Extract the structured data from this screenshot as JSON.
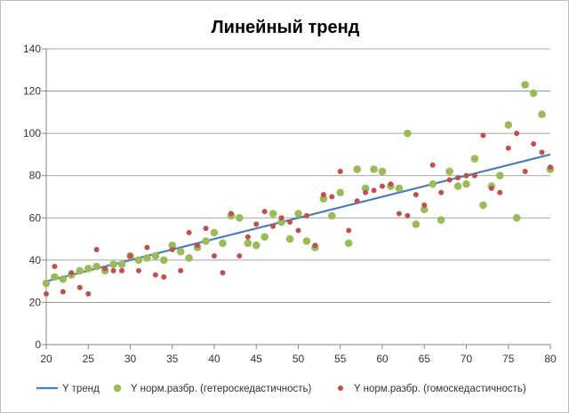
{
  "chart_data": {
    "type": "scatter",
    "title": "Линейный тренд",
    "xlabel": "",
    "ylabel": "",
    "xlim": [
      20,
      80
    ],
    "ylim": [
      0,
      140
    ],
    "x_ticks": [
      "20",
      "25",
      "30",
      "35",
      "40",
      "45",
      "50",
      "55",
      "60",
      "65",
      "70",
      "75",
      "80"
    ],
    "y_ticks": [
      "0",
      "20",
      "40",
      "60",
      "80",
      "100",
      "120",
      "140"
    ],
    "grid": "horizontal",
    "legend_position": "bottom",
    "series": [
      {
        "name": "Y тренд",
        "kind": "line",
        "color": "#4a7ebb",
        "x": [
          20,
          80
        ],
        "y": [
          30,
          90
        ]
      },
      {
        "name": "Y норм.разбр. (гетероскедастичность)",
        "kind": "scatter",
        "color": "#9bbb59",
        "x": [
          20,
          21,
          22,
          23,
          24,
          25,
          26,
          27,
          28,
          29,
          30,
          31,
          32,
          33,
          34,
          35,
          36,
          37,
          38,
          39,
          40,
          41,
          42,
          43,
          44,
          45,
          46,
          47,
          48,
          49,
          50,
          51,
          52,
          53,
          54,
          55,
          56,
          57,
          58,
          59,
          60,
          61,
          62,
          63,
          64,
          65,
          66,
          67,
          68,
          69,
          70,
          71,
          72,
          73,
          74,
          75,
          76,
          77,
          78,
          79,
          80
        ],
        "y": [
          29,
          32,
          31,
          33,
          35,
          36,
          37,
          35,
          38,
          38,
          42,
          40,
          41,
          42,
          40,
          47,
          44,
          41,
          46,
          49,
          53,
          48,
          61,
          60,
          48,
          47,
          51,
          62,
          58,
          50,
          62,
          49,
          46,
          69,
          61,
          72,
          48,
          83,
          74,
          83,
          82,
          75,
          74,
          100,
          57,
          64,
          76,
          59,
          82,
          75,
          76,
          88,
          66,
          75,
          80,
          104,
          60,
          123,
          119,
          109,
          83
        ]
      },
      {
        "name": "Y норм.разбр. (гомоскедастичность)",
        "kind": "scatter",
        "color": "#c0504d",
        "x": [
          20,
          21,
          22,
          23,
          24,
          25,
          26,
          27,
          28,
          29,
          30,
          31,
          32,
          33,
          34,
          35,
          36,
          37,
          38,
          39,
          40,
          41,
          42,
          43,
          44,
          45,
          46,
          47,
          48,
          49,
          50,
          51,
          52,
          53,
          54,
          55,
          56,
          57,
          58,
          59,
          60,
          61,
          62,
          63,
          64,
          65,
          66,
          67,
          68,
          69,
          70,
          71,
          72,
          73,
          74,
          75,
          76,
          77,
          78,
          79,
          80
        ],
        "y": [
          24,
          37,
          25,
          34,
          27,
          24,
          45,
          36,
          35,
          35,
          42,
          35,
          46,
          33,
          32,
          45,
          35,
          53,
          47,
          55,
          42,
          34,
          62,
          42,
          51,
          57,
          63,
          56,
          60,
          58,
          54,
          61,
          47,
          71,
          70,
          82,
          54,
          68,
          72,
          73,
          75,
          76,
          62,
          61,
          71,
          66,
          85,
          72,
          78,
          79,
          80,
          80,
          99,
          74,
          72,
          93,
          100,
          82,
          95,
          91,
          84
        ]
      }
    ]
  }
}
